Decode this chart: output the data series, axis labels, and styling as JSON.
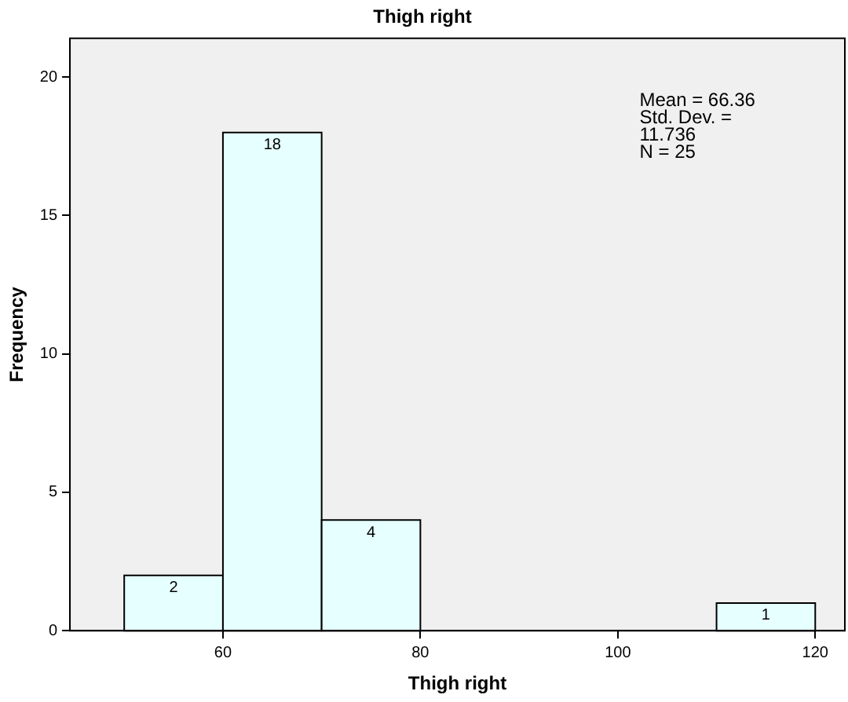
{
  "chart_data": {
    "type": "histogram",
    "title": "Thigh right",
    "xlabel": "Thigh right",
    "ylabel": "Frequency",
    "bins": [
      50,
      60,
      70,
      80,
      90,
      100,
      110,
      120
    ],
    "values": [
      2,
      18,
      4,
      0,
      0,
      0,
      1
    ],
    "value_labels": [
      "2",
      "18",
      "4",
      null,
      null,
      null,
      "1"
    ],
    "color": "#e6ffff",
    "xlim": [
      44.5,
      123
    ],
    "xticks": [
      60,
      80,
      100,
      120
    ],
    "ylim": [
      0,
      21.4
    ],
    "yticks": [
      0,
      5,
      10,
      15,
      20
    ],
    "grid": false,
    "legend": false,
    "annotations": [
      "Mean = 66.36",
      "Std. Dev. =",
      "11.736",
      "N = 25"
    ]
  }
}
